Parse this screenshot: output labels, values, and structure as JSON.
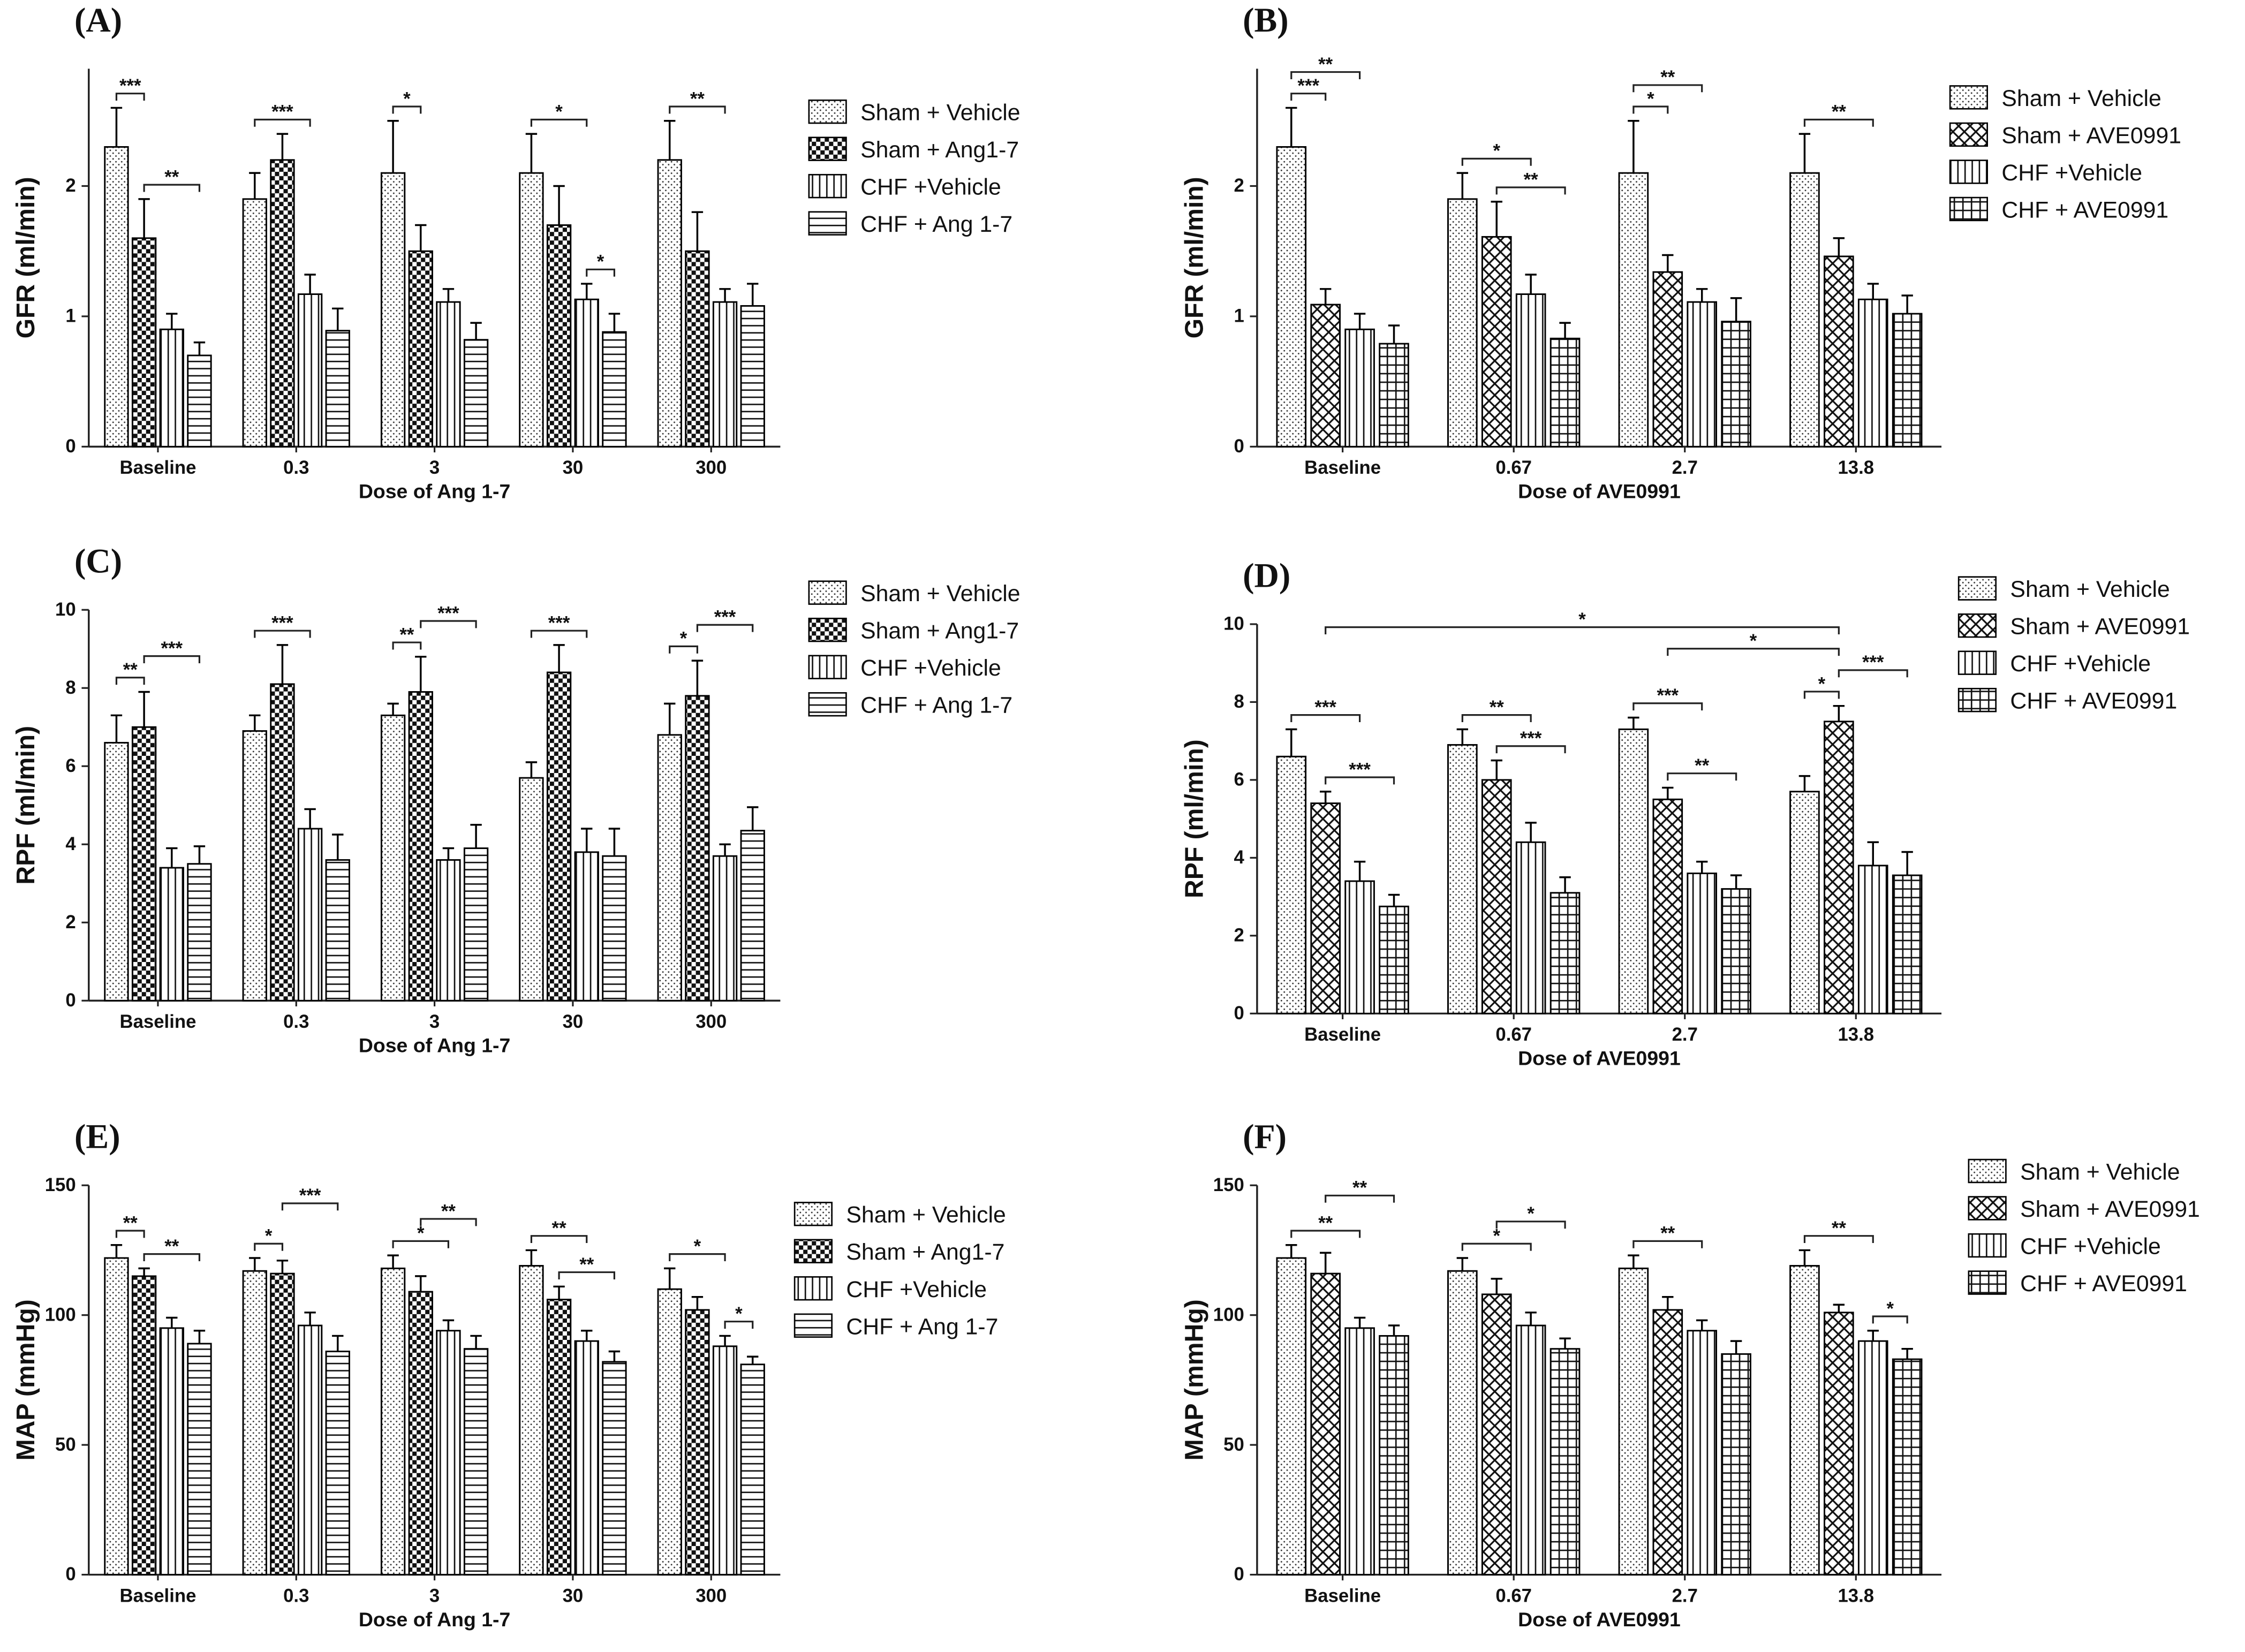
{
  "chart_data": [
    {
      "type": "bar",
      "title": "(A)",
      "y_label": "GFR (ml/min)",
      "x_label": "Dose of Ang 1-7",
      "categories": [
        "Baseline",
        "0.3",
        "3",
        "30",
        "300"
      ],
      "ylim": [
        0,
        2.9
      ],
      "yticks": [
        0,
        1,
        2
      ],
      "series": [
        {
          "name": "Sham + Vehicle",
          "color": "#000000",
          "pattern": "dots",
          "values": [
            2.3,
            1.9,
            2.1,
            2.1,
            2.2
          ],
          "errors": [
            0.3,
            0.2,
            0.4,
            0.3,
            0.3
          ]
        },
        {
          "name": "Sham + Ang1-7",
          "color": "#000000",
          "pattern": "checker",
          "values": [
            1.6,
            2.2,
            1.5,
            1.7,
            1.5
          ],
          "errors": [
            0.3,
            0.2,
            0.2,
            0.3,
            0.3
          ]
        },
        {
          "name": "CHF +Vehicle",
          "color": "#000000",
          "pattern": "vertical",
          "values": [
            0.9,
            1.17,
            1.11,
            1.13,
            1.11
          ],
          "errors": [
            0.12,
            0.15,
            0.1,
            0.12,
            0.1
          ]
        },
        {
          "name": "CHF + Ang 1-7",
          "color": "#000000",
          "pattern": "horizontal",
          "values": [
            0.7,
            0.89,
            0.82,
            0.88,
            1.08
          ],
          "errors": [
            0.1,
            0.17,
            0.13,
            0.14,
            0.17
          ]
        }
      ],
      "annotations": [
        {
          "text": "***",
          "from": [
            0,
            0
          ],
          "to": [
            0,
            1
          ]
        },
        {
          "text": "**",
          "from": [
            0,
            1
          ],
          "to": [
            0,
            3
          ]
        },
        {
          "text": "***",
          "from": [
            1,
            0
          ],
          "to": [
            1,
            2
          ]
        },
        {
          "text": "*",
          "from": [
            2,
            0
          ],
          "to": [
            2,
            1
          ]
        },
        {
          "text": "*",
          "from": [
            3,
            0
          ],
          "to": [
            3,
            2
          ]
        },
        {
          "text": "*",
          "from": [
            3,
            2
          ],
          "to": [
            3,
            3
          ]
        },
        {
          "text": "**",
          "from": [
            4,
            0
          ],
          "to": [
            4,
            2
          ]
        }
      ]
    },
    {
      "type": "bar",
      "title": "(B)",
      "y_label": "GFR (ml/min)",
      "x_label": "Dose of AVE0991",
      "categories": [
        "Baseline",
        "0.67",
        "2.7",
        "13.8"
      ],
      "ylim": [
        0,
        2.9
      ],
      "yticks": [
        0,
        1,
        2
      ],
      "series": [
        {
          "name": "Sham + Vehicle",
          "color": "#000000",
          "pattern": "dots",
          "values": [
            2.3,
            1.9,
            2.1,
            2.1
          ],
          "errors": [
            0.3,
            0.2,
            0.4,
            0.3
          ]
        },
        {
          "name": "Sham + AVE0991",
          "color": "#000000",
          "pattern": "crosshatch",
          "values": [
            1.09,
            1.61,
            1.34,
            1.46
          ],
          "errors": [
            0.12,
            0.27,
            0.13,
            0.14
          ]
        },
        {
          "name": "CHF +Vehicle",
          "color": "#000000",
          "pattern": "vertical",
          "values": [
            0.9,
            1.17,
            1.11,
            1.13
          ],
          "errors": [
            0.12,
            0.15,
            0.1,
            0.12
          ]
        },
        {
          "name": "CHF + AVE0991",
          "color": "#000000",
          "pattern": "grid",
          "values": [
            0.79,
            0.83,
            0.96,
            1.02
          ],
          "errors": [
            0.14,
            0.12,
            0.18,
            0.14
          ]
        }
      ],
      "annotations": [
        {
          "text": "***",
          "from": [
            0,
            0
          ],
          "to": [
            0,
            1
          ]
        },
        {
          "text": "**",
          "from": [
            0,
            0
          ],
          "to": [
            0,
            2
          ]
        },
        {
          "text": "*",
          "from": [
            1,
            0
          ],
          "to": [
            1,
            2
          ]
        },
        {
          "text": "**",
          "from": [
            1,
            1
          ],
          "to": [
            1,
            3
          ]
        },
        {
          "text": "*",
          "from": [
            2,
            0
          ],
          "to": [
            2,
            1
          ]
        },
        {
          "text": "**",
          "from": [
            2,
            0
          ],
          "to": [
            2,
            2
          ]
        },
        {
          "text": "**",
          "from": [
            3,
            0
          ],
          "to": [
            3,
            2
          ]
        }
      ]
    },
    {
      "type": "bar",
      "title": "(C)",
      "y_label": "RPF (ml/min)",
      "x_label": "Dose of Ang 1-7",
      "categories": [
        "Baseline",
        "0.3",
        "3",
        "30",
        "300"
      ],
      "ylim": [
        0,
        10
      ],
      "yticks": [
        0,
        2,
        4,
        6,
        8,
        10
      ],
      "series": [
        {
          "name": "Sham + Vehicle",
          "color": "#000000",
          "pattern": "dots",
          "values": [
            6.6,
            6.9,
            7.3,
            5.7,
            6.8
          ],
          "errors": [
            0.7,
            0.4,
            0.3,
            0.4,
            0.8
          ]
        },
        {
          "name": "Sham + Ang1-7",
          "color": "#000000",
          "pattern": "checker",
          "values": [
            7.0,
            8.1,
            7.9,
            8.4,
            7.8
          ],
          "errors": [
            0.9,
            1.0,
            0.9,
            0.7,
            0.9
          ]
        },
        {
          "name": "CHF +Vehicle",
          "color": "#000000",
          "pattern": "vertical",
          "values": [
            3.4,
            4.4,
            3.6,
            3.8,
            3.7
          ],
          "errors": [
            0.5,
            0.5,
            0.3,
            0.6,
            0.3
          ]
        },
        {
          "name": "CHF + Ang 1-7",
          "color": "#000000",
          "pattern": "horizontal",
          "values": [
            3.5,
            3.6,
            3.9,
            3.7,
            4.35
          ],
          "errors": [
            0.45,
            0.65,
            0.6,
            0.7,
            0.6
          ]
        }
      ],
      "annotations": [
        {
          "text": "**",
          "from": [
            0,
            0
          ],
          "to": [
            0,
            1
          ]
        },
        {
          "text": "***",
          "from": [
            0,
            1
          ],
          "to": [
            0,
            3
          ]
        },
        {
          "text": "***",
          "from": [
            1,
            0
          ],
          "to": [
            1,
            2
          ]
        },
        {
          "text": "**",
          "from": [
            2,
            0
          ],
          "to": [
            2,
            1
          ]
        },
        {
          "text": "***",
          "from": [
            2,
            1
          ],
          "to": [
            2,
            3
          ]
        },
        {
          "text": "***",
          "from": [
            3,
            0
          ],
          "to": [
            3,
            2
          ]
        },
        {
          "text": "*",
          "from": [
            4,
            0
          ],
          "to": [
            4,
            1
          ]
        },
        {
          "text": "***",
          "from": [
            4,
            1
          ],
          "to": [
            4,
            3
          ]
        }
      ]
    },
    {
      "type": "bar",
      "title": "(D)",
      "y_label": "RPF (ml/min)",
      "x_label": "Dose of AVE0991",
      "categories": [
        "Baseline",
        "0.67",
        "2.7",
        "13.8"
      ],
      "ylim": [
        0,
        10
      ],
      "yticks": [
        0,
        2,
        4,
        6,
        8,
        10
      ],
      "series": [
        {
          "name": "Sham + Vehicle",
          "color": "#000000",
          "pattern": "dots",
          "values": [
            6.6,
            6.9,
            7.3,
            5.7
          ],
          "errors": [
            0.7,
            0.4,
            0.3,
            0.4
          ]
        },
        {
          "name": "Sham + AVE0991",
          "color": "#000000",
          "pattern": "crosshatch",
          "values": [
            5.4,
            6.0,
            5.5,
            7.5
          ],
          "errors": [
            0.3,
            0.5,
            0.3,
            0.4
          ]
        },
        {
          "name": "CHF +Vehicle",
          "color": "#000000",
          "pattern": "vertical",
          "values": [
            3.4,
            4.4,
            3.6,
            3.8
          ],
          "errors": [
            0.5,
            0.5,
            0.3,
            0.6
          ]
        },
        {
          "name": "CHF + AVE0991",
          "color": "#000000",
          "pattern": "grid",
          "values": [
            2.75,
            3.1,
            3.2,
            3.55
          ],
          "errors": [
            0.3,
            0.4,
            0.35,
            0.6
          ]
        }
      ],
      "annotations": [
        {
          "text": "***",
          "from": [
            0,
            0
          ],
          "to": [
            0,
            2
          ]
        },
        {
          "text": "***",
          "from": [
            0,
            1
          ],
          "to": [
            0,
            3
          ]
        },
        {
          "text": "**",
          "from": [
            1,
            0
          ],
          "to": [
            1,
            2
          ]
        },
        {
          "text": "***",
          "from": [
            1,
            1
          ],
          "to": [
            1,
            3
          ]
        },
        {
          "text": "***",
          "from": [
            2,
            0
          ],
          "to": [
            2,
            2
          ]
        },
        {
          "text": "**",
          "from": [
            2,
            1
          ],
          "to": [
            2,
            3
          ]
        },
        {
          "text": "*",
          "from": [
            3,
            0
          ],
          "to": [
            3,
            1
          ]
        },
        {
          "text": "***",
          "from": [
            3,
            1
          ],
          "to": [
            3,
            3
          ]
        },
        {
          "text": "*",
          "from": [
            2,
            1
          ],
          "to": [
            3,
            1
          ]
        },
        {
          "text": "*",
          "from": [
            0,
            1
          ],
          "to": [
            3,
            1
          ]
        }
      ]
    },
    {
      "type": "bar",
      "title": "(E)",
      "y_label": "MAP (mmHg)",
      "x_label": "Dose of Ang 1-7",
      "categories": [
        "Baseline",
        "0.3",
        "3",
        "30",
        "300"
      ],
      "ylim": [
        0,
        150
      ],
      "yticks": [
        0,
        50,
        100,
        150
      ],
      "series": [
        {
          "name": "Sham + Vehicle",
          "color": "#000000",
          "pattern": "dots",
          "values": [
            122,
            117,
            118,
            119,
            110
          ],
          "errors": [
            5,
            5,
            5,
            6,
            8
          ]
        },
        {
          "name": "Sham + Ang1-7",
          "color": "#000000",
          "pattern": "checker",
          "values": [
            115,
            116,
            109,
            106,
            102
          ],
          "errors": [
            3,
            5,
            6,
            5,
            5
          ]
        },
        {
          "name": "CHF +Vehicle",
          "color": "#000000",
          "pattern": "vertical",
          "values": [
            95,
            96,
            94,
            90,
            88
          ],
          "errors": [
            4,
            5,
            4,
            4,
            4
          ]
        },
        {
          "name": "CHF + Ang 1-7",
          "color": "#000000",
          "pattern": "horizontal",
          "values": [
            89,
            86,
            87,
            82,
            81
          ],
          "errors": [
            5,
            6,
            5,
            4,
            3
          ]
        }
      ],
      "annotations": [
        {
          "text": "**",
          "from": [
            0,
            0
          ],
          "to": [
            0,
            1
          ]
        },
        {
          "text": "**",
          "from": [
            0,
            1
          ],
          "to": [
            0,
            3
          ]
        },
        {
          "text": "*",
          "from": [
            1,
            0
          ],
          "to": [
            1,
            1
          ]
        },
        {
          "text": "***",
          "from": [
            1,
            1
          ],
          "to": [
            1,
            3
          ]
        },
        {
          "text": "*",
          "from": [
            2,
            0
          ],
          "to": [
            2,
            2
          ]
        },
        {
          "text": "**",
          "from": [
            2,
            1
          ],
          "to": [
            2,
            3
          ]
        },
        {
          "text": "**",
          "from": [
            3,
            0
          ],
          "to": [
            3,
            2
          ]
        },
        {
          "text": "**",
          "from": [
            3,
            1
          ],
          "to": [
            3,
            3
          ]
        },
        {
          "text": "*",
          "from": [
            4,
            0
          ],
          "to": [
            4,
            2
          ]
        },
        {
          "text": "*",
          "from": [
            4,
            2
          ],
          "to": [
            4,
            3
          ]
        }
      ]
    },
    {
      "type": "bar",
      "title": "(F)",
      "y_label": "MAP (mmHg)",
      "x_label": "Dose of AVE0991",
      "categories": [
        "Baseline",
        "0.67",
        "2.7",
        "13.8"
      ],
      "ylim": [
        0,
        150
      ],
      "yticks": [
        0,
        50,
        100,
        150
      ],
      "series": [
        {
          "name": "Sham + Vehicle",
          "color": "#000000",
          "pattern": "dots",
          "values": [
            122,
            117,
            118,
            119
          ],
          "errors": [
            5,
            5,
            5,
            6
          ]
        },
        {
          "name": "Sham + AVE0991",
          "color": "#000000",
          "pattern": "crosshatch",
          "values": [
            116,
            108,
            102,
            101
          ],
          "errors": [
            8,
            6,
            5,
            3
          ]
        },
        {
          "name": "CHF +Vehicle",
          "color": "#000000",
          "pattern": "vertical",
          "values": [
            95,
            96,
            94,
            90
          ],
          "errors": [
            4,
            5,
            4,
            4
          ]
        },
        {
          "name": "CHF + AVE0991",
          "color": "#000000",
          "pattern": "grid",
          "values": [
            92,
            87,
            85,
            83
          ],
          "errors": [
            4,
            4,
            5,
            4
          ]
        }
      ],
      "annotations": [
        {
          "text": "**",
          "from": [
            0,
            0
          ],
          "to": [
            0,
            2
          ]
        },
        {
          "text": "**",
          "from": [
            0,
            1
          ],
          "to": [
            0,
            3
          ]
        },
        {
          "text": "*",
          "from": [
            1,
            0
          ],
          "to": [
            1,
            2
          ]
        },
        {
          "text": "*",
          "from": [
            1,
            1
          ],
          "to": [
            1,
            3
          ]
        },
        {
          "text": "**",
          "from": [
            2,
            0
          ],
          "to": [
            2,
            2
          ]
        },
        {
          "text": "**",
          "from": [
            3,
            0
          ],
          "to": [
            3,
            2
          ]
        },
        {
          "text": "*",
          "from": [
            3,
            2
          ],
          "to": [
            3,
            3
          ]
        }
      ]
    }
  ]
}
